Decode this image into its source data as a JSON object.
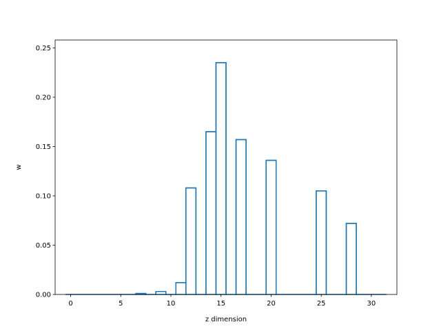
{
  "chart_data": {
    "type": "bar",
    "style": "step",
    "color": "#1f77b4",
    "xlabel": "z dimension",
    "ylabel": "w",
    "xlim": [
      -1.55,
      32.55
    ],
    "ylim": [
      0,
      0.258
    ],
    "xticks": [
      0,
      5,
      10,
      15,
      20,
      25,
      30
    ],
    "yticks": [
      0.0,
      0.05,
      0.1,
      0.15,
      0.2,
      0.25
    ],
    "xtick_labels": [
      "0",
      "5",
      "10",
      "15",
      "20",
      "25",
      "30"
    ],
    "ytick_labels": [
      "0.00",
      "0.05",
      "0.10",
      "0.15",
      "0.20",
      "0.25"
    ],
    "categories": [
      0,
      1,
      2,
      3,
      4,
      5,
      6,
      7,
      8,
      9,
      10,
      11,
      12,
      13,
      14,
      15,
      16,
      17,
      18,
      19,
      20,
      21,
      22,
      23,
      24,
      25,
      26,
      27,
      28,
      29,
      30,
      31
    ],
    "values": [
      0,
      0,
      0,
      0,
      0,
      0,
      0,
      0.001,
      0,
      0.003,
      0,
      0.012,
      0.108,
      0,
      0.165,
      0.235,
      0,
      0.157,
      0,
      0,
      0.136,
      0,
      0,
      0,
      0,
      0.105,
      0,
      0,
      0.072,
      0,
      0,
      0
    ],
    "grid": false
  }
}
